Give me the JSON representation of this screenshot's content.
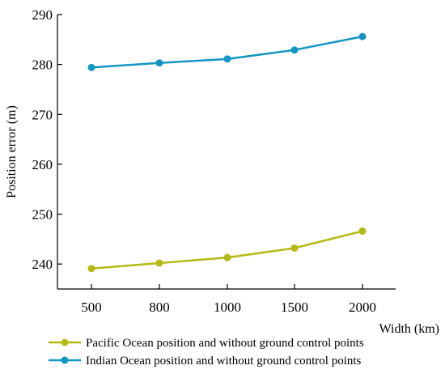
{
  "chart_data": {
    "type": "line",
    "categories": [
      "500",
      "800",
      "1000",
      "1500",
      "2000"
    ],
    "xlabel": "Width (km)",
    "ylabel": "Position error (m)",
    "ylim": [
      235,
      290
    ],
    "yticks": [
      240,
      250,
      260,
      270,
      280,
      290
    ],
    "grid": false,
    "legend_position": "bottom",
    "series": [
      {
        "name": "Pacific Ocean position and without ground control points",
        "color": "#b5b914",
        "values": [
          239.1,
          240.2,
          241.3,
          243.2,
          246.6
        ]
      },
      {
        "name": "Indian Ocean position and without ground control points",
        "color": "#1496c4",
        "values": [
          279.4,
          280.3,
          281.1,
          282.9,
          285.6
        ]
      }
    ]
  }
}
